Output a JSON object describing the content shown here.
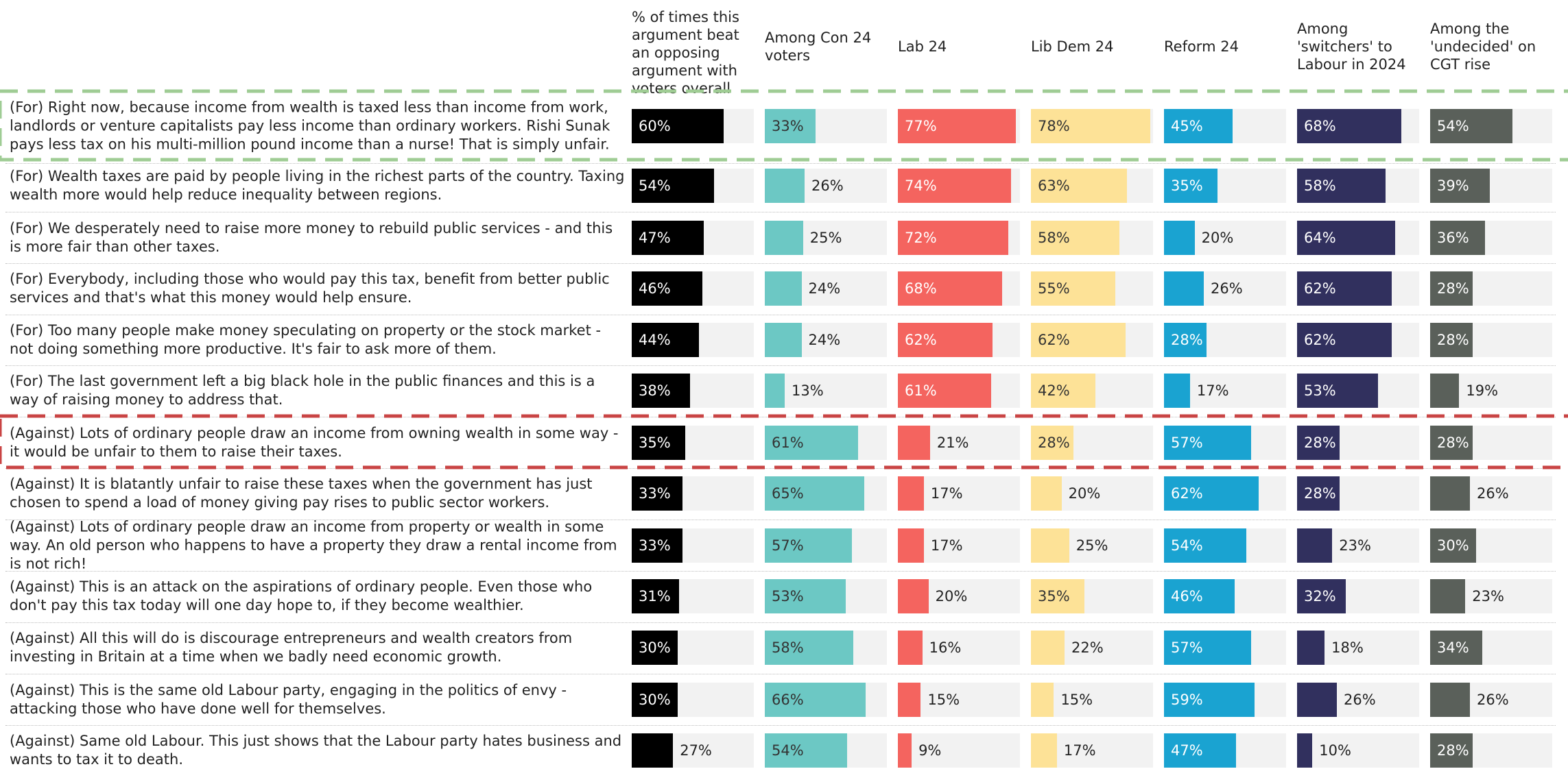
{
  "chart_data": {
    "type": "bar",
    "categories": [
      "(For) Right now, because income from wealth is taxed less than income from work, landlords or venture capitalists pay less income than ordinary workers. Rishi Sunak pays less tax on his multi-million pound income than a nurse! That is simply unfair.",
      "(For) Wealth taxes are paid by people living in the richest parts of the country. Taxing wealth more would help reduce inequality between regions.",
      "(For) We desperately need to raise more money to rebuild public services - and this is more fair than other taxes.",
      "(For) Everybody, including those who would pay this tax, benefit from better public services and that's what this money would help ensure.",
      "(For) Too many people make money speculating on property or the stock market - not doing something more productive. It's fair to ask more of them.",
      "(For) The last government left a big black hole in the public finances and this is a way of raising money to address that.",
      "(Against) Lots of ordinary people draw an income from owning wealth in some way - it would be unfair to them to raise their taxes.",
      "(Against) It is blatantly unfair to raise these taxes when the government has just chosen to spend a load of money giving pay rises to public sector workers.",
      "(Against) Lots of ordinary people draw an income from property or wealth in some way. An old person who happens to have a property they draw a rental income from is not rich!",
      "(Against) This is an attack on the aspirations of ordinary people. Even those who don't pay this tax today will one day hope to, if they become wealthier.",
      "(Against) All this will do is discourage entrepreneurs and wealth creators from investing in Britain at a time when we badly need economic growth.",
      "(Against) This is the same old Labour party, engaging in the politics of envy - attacking those who have done well for themselves.",
      "(Against) Same old Labour. This just shows that the Labour party hates business and wants to tax it to death."
    ],
    "series": [
      {
        "name": "% of times this argument beat an opposing argument with voters overall",
        "color": "#000000",
        "values": [
          60,
          54,
          47,
          46,
          44,
          38,
          35,
          33,
          33,
          31,
          30,
          30,
          27
        ],
        "value_labels": [
          "60%",
          "54%",
          "47%",
          "46%",
          "44%",
          "38%",
          "35%",
          "33%",
          "33%",
          "31%",
          "30%",
          "30%",
          "27%"
        ]
      },
      {
        "name": "Among Con 24 voters",
        "color": "#6cc8c4",
        "values": [
          33,
          26,
          25,
          24,
          24,
          13,
          61,
          65,
          57,
          53,
          58,
          66,
          54
        ],
        "value_labels": [
          "33%",
          "26%",
          "25%",
          "24%",
          "24%",
          "13%",
          "61%",
          "65%",
          "57%",
          "53%",
          "58%",
          "66%",
          "54%"
        ]
      },
      {
        "name": "Lab 24",
        "color": "#f4645f",
        "values": [
          77,
          74,
          72,
          68,
          62,
          61,
          21,
          17,
          17,
          20,
          16,
          15,
          9
        ],
        "value_labels": [
          "77%",
          "74%",
          "72%",
          "68%",
          "62%",
          "61%",
          "21%",
          "17%",
          "17%",
          "20%",
          "16%",
          "15%",
          "9%"
        ]
      },
      {
        "name": "Lib Dem 24",
        "color": "#fde297",
        "values": [
          78,
          63,
          58,
          55,
          62,
          42,
          28,
          20,
          25,
          35,
          22,
          15,
          17
        ],
        "value_labels": [
          "78%",
          "63%",
          "58%",
          "55%",
          "62%",
          "42%",
          "28%",
          "20%",
          "25%",
          "35%",
          "22%",
          "15%",
          "17%"
        ]
      },
      {
        "name": "Reform 24",
        "color": "#1aa3d1",
        "values": [
          45,
          35,
          20,
          26,
          28,
          17,
          57,
          62,
          54,
          46,
          57,
          59,
          47
        ],
        "value_labels": [
          "45%",
          "35%",
          "20%",
          "26%",
          "28%",
          "17%",
          "57%",
          "62%",
          "54%",
          "46%",
          "57%",
          "59%",
          "47%"
        ]
      },
      {
        "name": "Among 'switchers' to Labour in 2024",
        "color": "#31305e",
        "values": [
          68,
          58,
          64,
          62,
          62,
          53,
          28,
          28,
          23,
          32,
          18,
          26,
          10
        ],
        "value_labels": [
          "68%",
          "58%",
          "64%",
          "62%",
          "62%",
          "53%",
          "28%",
          "28%",
          "23%",
          "32%",
          "18%",
          "26%",
          "10%"
        ]
      },
      {
        "name": "Among the 'undecided' on CGT rise",
        "color": "#5a605a",
        "values": [
          54,
          39,
          36,
          28,
          28,
          19,
          28,
          26,
          30,
          23,
          34,
          26,
          28
        ],
        "value_labels": [
          "54%",
          "39%",
          "36%",
          "28%",
          "28%",
          "19%",
          "28%",
          "26%",
          "30%",
          "23%",
          "34%",
          "26%",
          "28%"
        ]
      }
    ]
  }
}
